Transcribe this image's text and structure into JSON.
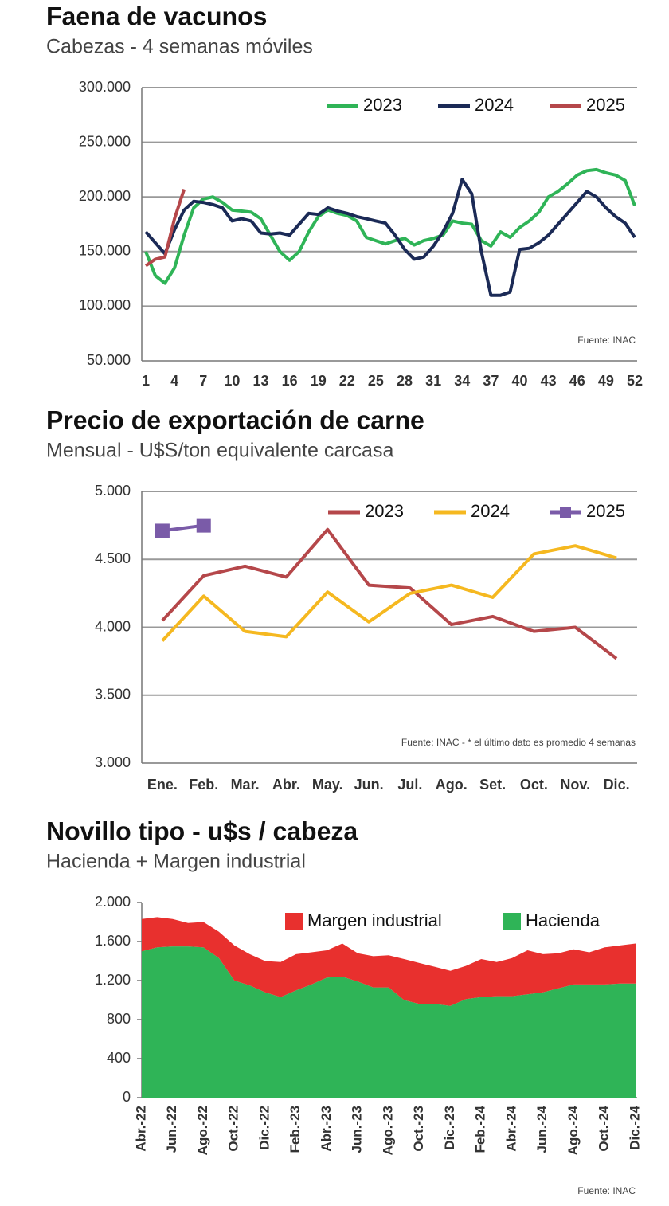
{
  "chart_data": [
    {
      "type": "line",
      "title": "Faena de vacunos",
      "subtitle": "Cabezas - 4 semanas móviles",
      "x": [
        1,
        2,
        3,
        4,
        5,
        6,
        7,
        8,
        9,
        10,
        11,
        12,
        13,
        14,
        15,
        16,
        17,
        18,
        19,
        20,
        21,
        22,
        23,
        24,
        25,
        26,
        27,
        28,
        29,
        30,
        31,
        32,
        33,
        34,
        35,
        36,
        37,
        38,
        39,
        40,
        41,
        42,
        43,
        44,
        45,
        46,
        47,
        48,
        49,
        50,
        51,
        52
      ],
      "xlim": [
        1,
        52
      ],
      "xticks": [
        1,
        4,
        7,
        10,
        13,
        16,
        19,
        22,
        25,
        28,
        31,
        34,
        37,
        40,
        43,
        46,
        49,
        52
      ],
      "ylim": [
        50000,
        300000
      ],
      "yticks": [
        {
          "value": 50000,
          "label": "50.000"
        },
        {
          "value": 100000,
          "label": "100.000"
        },
        {
          "value": 150000,
          "label": "150.000"
        },
        {
          "value": 200000,
          "label": "200.000"
        },
        {
          "value": 250000,
          "label": "250.000"
        },
        {
          "value": 300000,
          "label": "300.000"
        }
      ],
      "grid": true,
      "annotation": "Fuente: INAC",
      "series": [
        {
          "name": "2023",
          "color": "#2fb457",
          "values": [
            150000,
            128000,
            121000,
            135000,
            165000,
            190000,
            198000,
            200000,
            195000,
            188000,
            187000,
            186000,
            180000,
            165000,
            150000,
            142000,
            150000,
            168000,
            182000,
            188000,
            185000,
            183000,
            178000,
            163000,
            160000,
            157000,
            160000,
            162000,
            156000,
            160000,
            162000,
            165000,
            178000,
            176000,
            175000,
            160000,
            155000,
            168000,
            163000,
            172000,
            178000,
            186000,
            200000,
            205000,
            212000,
            220000,
            224000,
            225000,
            222000,
            220000,
            215000,
            192000
          ]
        },
        {
          "name": "2024",
          "color": "#1b2a56",
          "values": [
            168000,
            158000,
            148000,
            170000,
            188000,
            196000,
            195000,
            193000,
            190000,
            178000,
            180000,
            178000,
            167000,
            166000,
            167000,
            165000,
            175000,
            185000,
            184000,
            190000,
            187000,
            185000,
            182000,
            180000,
            178000,
            176000,
            165000,
            152000,
            143000,
            145000,
            155000,
            168000,
            185000,
            216000,
            203000,
            150000,
            110000,
            110000,
            113000,
            152000,
            153000,
            158000,
            165000,
            175000,
            185000,
            195000,
            205000,
            200000,
            190000,
            182000,
            176000,
            163000
          ]
        },
        {
          "name": "2025",
          "color": "#b5474a",
          "values": [
            137000,
            143000,
            145000,
            180000,
            207000,
            null,
            null,
            null,
            null,
            null,
            null,
            null,
            null,
            null,
            null,
            null,
            null,
            null,
            null,
            null,
            null,
            null,
            null,
            null,
            null,
            null,
            null,
            null,
            null,
            null,
            null,
            null,
            null,
            null,
            null,
            null,
            null,
            null,
            null,
            null,
            null,
            null,
            null,
            null,
            null,
            null,
            null,
            null,
            null,
            null,
            null,
            null
          ]
        }
      ]
    },
    {
      "type": "line",
      "title": "Precio de exportación de carne",
      "subtitle": "Mensual - U$S/ton equivalente carcasa",
      "categories": [
        "Ene.",
        "Feb.",
        "Mar.",
        "Abr.",
        "May.",
        "Jun.",
        "Jul.",
        "Ago.",
        "Set.",
        "Oct.",
        "Nov.",
        "Dic."
      ],
      "ylim": [
        3000,
        5000
      ],
      "yticks": [
        {
          "value": 3000,
          "label": "3.000"
        },
        {
          "value": 3500,
          "label": "3.500"
        },
        {
          "value": 4000,
          "label": "4.000"
        },
        {
          "value": 4500,
          "label": "4.500"
        },
        {
          "value": 5000,
          "label": "5.000"
        }
      ],
      "grid": true,
      "annotation": "Fuente: INAC - * el último dato es promedio 4 semanas",
      "series": [
        {
          "name": "2023",
          "color": "#b5474a",
          "values": [
            4050,
            4380,
            4450,
            4370,
            4720,
            4310,
            4290,
            4020,
            4080,
            3970,
            4000,
            3770
          ]
        },
        {
          "name": "2024",
          "color": "#f5b820",
          "values": [
            3900,
            4230,
            3970,
            3930,
            4260,
            4040,
            4250,
            4310,
            4220,
            4540,
            4600,
            4510
          ]
        },
        {
          "name": "2025",
          "color": "#7a5ba8",
          "marker": "square",
          "values": [
            4710,
            4750,
            null,
            null,
            null,
            null,
            null,
            null,
            null,
            null,
            null,
            null
          ]
        }
      ]
    },
    {
      "type": "area",
      "stacked": true,
      "title": "Novillo tipo - u$s / cabeza",
      "subtitle": "Hacienda + Margen industrial",
      "categories": [
        "Abr.-22",
        null,
        "Jun.-22",
        null,
        "Ago.-22",
        null,
        "Oct.-22",
        null,
        "Dic.-22",
        null,
        "Feb.-23",
        null,
        "Abr.-23",
        null,
        "Jun.-23",
        null,
        "Ago.-23",
        null,
        "Oct.-23",
        null,
        "Dic.-23",
        null,
        "Feb.-24",
        null,
        "Abr.-24",
        null,
        "Jun.-24",
        null,
        "Ago.-24",
        null,
        "Oct.-24",
        null,
        "Dic.-24"
      ],
      "ylim": [
        0,
        2000
      ],
      "yticks": [
        0,
        400,
        800,
        {
          "value": 1200,
          "label": "1.200"
        },
        {
          "value": 1600,
          "label": "1.600"
        },
        {
          "value": 2000,
          "label": "2.000"
        }
      ],
      "grid": false,
      "annotation": "Fuente: INAC",
      "series": [
        {
          "name": "Margen industrial",
          "color": "#e8302e",
          "values": [
            330,
            310,
            280,
            240,
            260,
            270,
            360,
            320,
            320,
            360,
            370,
            330,
            280,
            340,
            290,
            320,
            330,
            420,
            420,
            380,
            360,
            340,
            390,
            350,
            390,
            450,
            390,
            360,
            360,
            330,
            380,
            390,
            410
          ]
        },
        {
          "name": "Hacienda",
          "color": "#2fb457",
          "values": [
            1500,
            1540,
            1550,
            1550,
            1540,
            1430,
            1200,
            1150,
            1080,
            1030,
            1100,
            1160,
            1230,
            1240,
            1190,
            1130,
            1130,
            1000,
            960,
            960,
            940,
            1010,
            1030,
            1040,
            1040,
            1060,
            1080,
            1120,
            1160,
            1160,
            1160,
            1170,
            1170
          ]
        }
      ]
    }
  ]
}
